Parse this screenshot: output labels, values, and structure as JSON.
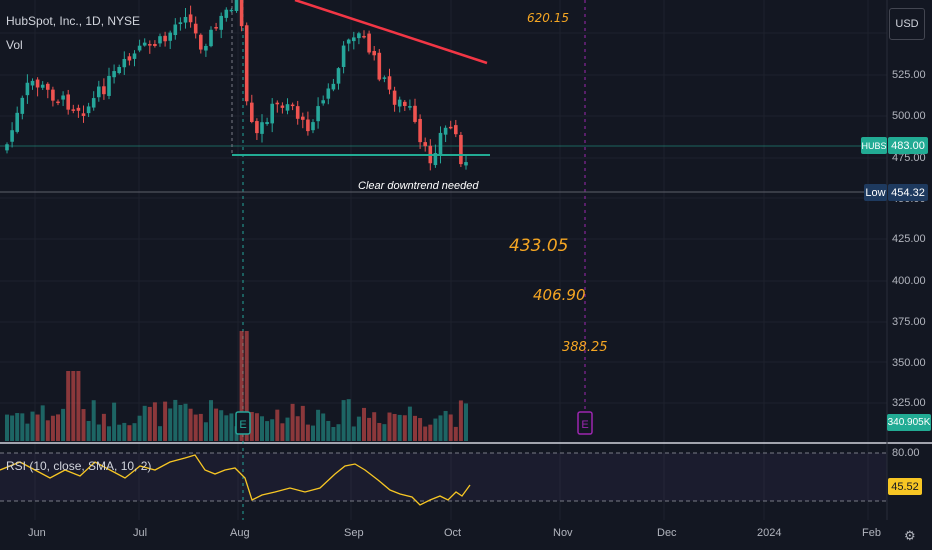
{
  "header": {
    "title": "HubSpot, Inc., 1D, NYSE",
    "volume_label": "Vol",
    "currency_button": "USD"
  },
  "price_axis": [
    "525.00",
    "500.00",
    "475.00",
    "450.00",
    "425.00",
    "400.00",
    "375.00",
    "350.00",
    "325.00"
  ],
  "rsi_axis": [
    "80.00"
  ],
  "time_axis": [
    "Jun",
    "Jul",
    "Aug",
    "Sep",
    "Oct",
    "Nov",
    "Dec",
    "2024",
    "Feb"
  ],
  "tags": {
    "symbol": "HUBS",
    "last_price": "483.00",
    "low_label": "Low",
    "low_value": "454.32",
    "volume_value": "340.905K",
    "rsi_value": "45.52"
  },
  "indicator": {
    "rsi_label": "RSI (10, close, SMA, 10, 2)"
  },
  "annotations": {
    "note": "Clear downtrend needed",
    "targets": [
      "620.15",
      "433.05",
      "406.90",
      "388.25"
    ]
  },
  "earnings_marker": "E",
  "colors": {
    "background": "#131722",
    "up_candle": "#26a69a",
    "down_candle": "#ef5350",
    "trendline": "#f23645",
    "support_line": "#22ab94",
    "rsi_line": "#f7c624",
    "target_text": "#f5a623",
    "earnings_future": "#9c27b0"
  },
  "icons": {
    "settings": "gear-icon"
  }
}
